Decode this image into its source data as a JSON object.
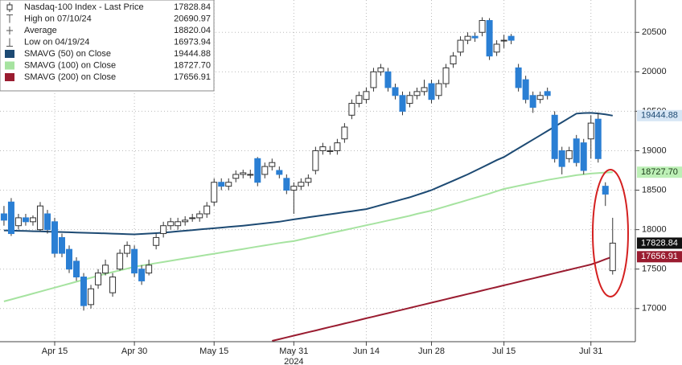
{
  "chart_data": {
    "type": "candlestick",
    "name": "Nasdaq-100 Index - Last Price",
    "last": 17828.84,
    "stats": [
      {
        "label": "High on 07/10/24",
        "value": 20690.97
      },
      {
        "label": "Average",
        "value": 18820.04
      },
      {
        "label": "Low on 04/19/24",
        "value": 16973.94
      }
    ],
    "categories": [
      null,
      null,
      null,
      null,
      null,
      null,
      null,
      "Apr 15",
      null,
      null,
      null,
      null,
      null,
      null,
      null,
      null,
      null,
      null,
      "Apr 30",
      null,
      null,
      null,
      null,
      null,
      null,
      null,
      null,
      null,
      null,
      "May 15",
      null,
      null,
      null,
      null,
      null,
      null,
      null,
      null,
      null,
      null,
      "May 31",
      null,
      null,
      null,
      null,
      null,
      null,
      null,
      null,
      null,
      "Jun 14",
      null,
      null,
      null,
      null,
      null,
      null,
      null,
      null,
      "Jun 28",
      null,
      null,
      null,
      null,
      null,
      null,
      null,
      null,
      null,
      "Jul 15",
      null,
      null,
      null,
      null,
      null,
      null,
      null,
      null,
      null,
      null,
      null,
      "Jul 31",
      null,
      null,
      null
    ],
    "xlabel": "2024",
    "open": [
      18200,
      18350,
      18050,
      18150,
      18100,
      18000,
      18200,
      18100,
      17900,
      17750,
      17600,
      17400,
      17050,
      17300,
      17450,
      17200,
      17500,
      17700,
      17750,
      17500,
      17450,
      17800,
      17950,
      18050,
      18050,
      18100,
      18150,
      18150,
      18200,
      18350,
      18600,
      18550,
      18650,
      18700,
      18700,
      18900,
      18700,
      18800,
      18750,
      18650,
      18500,
      18550,
      18600,
      18750,
      19000,
      19000,
      19000,
      19150,
      19450,
      19600,
      19650,
      19800,
      20000,
      20000,
      19800,
      19700,
      19600,
      19700,
      19750,
      19850,
      19700,
      19850,
      20100,
      20250,
      20400,
      20450,
      20500,
      20650,
      20250,
      20400,
      20450,
      20050,
      19900,
      19700,
      19650,
      19750,
      19450,
      19000,
      18900,
      19150,
      19100,
      19150,
      19400,
      18550,
      17480
    ],
    "high": [
      18300,
      18400,
      18200,
      18200,
      18180,
      18350,
      18250,
      18150,
      17950,
      17800,
      17650,
      17450,
      17300,
      17500,
      17620,
      17450,
      17750,
      17850,
      17800,
      17550,
      17620,
      17950,
      18100,
      18150,
      18150,
      18170,
      18200,
      18240,
      18350,
      18650,
      18650,
      18650,
      18750,
      18760,
      18760,
      18920,
      18850,
      18900,
      18800,
      18700,
      18600,
      18650,
      18700,
      19050,
      19100,
      19060,
      19150,
      19350,
      19650,
      19750,
      19800,
      20050,
      20100,
      20050,
      19850,
      19750,
      19750,
      19800,
      19900,
      19900,
      19900,
      20100,
      20250,
      20450,
      20500,
      20500,
      20690.97,
      20680,
      20400,
      20470,
      20480,
      20100,
      19950,
      19750,
      19750,
      19800,
      19500,
      19050,
      19050,
      19200,
      19150,
      19450,
      19480,
      18600,
      18150
    ],
    "low": [
      18050,
      17920,
      18000,
      18050,
      18050,
      17980,
      17950,
      17650,
      17650,
      17450,
      17350,
      16973.94,
      17000,
      17250,
      17420,
      17150,
      17480,
      17650,
      17400,
      17300,
      17420,
      17750,
      17900,
      18000,
      18000,
      18050,
      18100,
      18100,
      18150,
      18300,
      18500,
      18500,
      18600,
      18650,
      18650,
      18550,
      18650,
      18750,
      18650,
      18450,
      18200,
      18500,
      18550,
      18700,
      18950,
      18950,
      18950,
      19100,
      19400,
      19550,
      19600,
      19750,
      19950,
      19750,
      19650,
      19450,
      19550,
      19650,
      19700,
      19600,
      19650,
      19800,
      20050,
      20200,
      20350,
      20380,
      20450,
      20150,
      20200,
      20300,
      20350,
      19750,
      19600,
      19480,
      19600,
      19650,
      18850,
      18700,
      18850,
      18800,
      18700,
      18900,
      18850,
      18300,
      17430
    ],
    "close": [
      18120,
      17950,
      18150,
      18100,
      18150,
      18300,
      18000,
      17700,
      17700,
      17500,
      17400,
      17037,
      17250,
      17450,
      17550,
      17400,
      17700,
      17800,
      17450,
      17350,
      17550,
      17900,
      18050,
      18100,
      18100,
      18120,
      18150,
      18200,
      18300,
      18600,
      18550,
      18600,
      18700,
      18720,
      18700,
      18600,
      18800,
      18850,
      18700,
      18500,
      18550,
      18600,
      18650,
      19000,
      19050,
      19000,
      19100,
      19300,
      19600,
      19700,
      19750,
      20000,
      20050,
      19800,
      19700,
      19500,
      19700,
      19750,
      19800,
      19650,
      19850,
      20050,
      20200,
      20400,
      20450,
      20430,
      20650,
      20200,
      20350,
      20400,
      20400,
      19800,
      19650,
      19550,
      19700,
      19700,
      18900,
      18800,
      19000,
      18850,
      18750,
      19350,
      18900,
      18450,
      17828.84
    ],
    "up_color": "#ffffff",
    "down_color": "#2a7fd4",
    "series": [
      {
        "name": "SMAVG (50) on Close",
        "color": "#1d4a73",
        "last": 19444.88,
        "values": [
          17990,
          17988,
          17985,
          17983,
          17980,
          17978,
          17975,
          17972,
          17970,
          17967,
          17964,
          17961,
          17958,
          17955,
          17952,
          17949,
          17946,
          17943,
          17940,
          17945,
          17950,
          17955,
          17962,
          17970,
          17978,
          17986,
          17994,
          18002,
          18010,
          18018,
          18026,
          18034,
          18042,
          18050,
          18060,
          18070,
          18080,
          18090,
          18100,
          18115,
          18130,
          18143,
          18156,
          18169,
          18182,
          18195,
          18208,
          18221,
          18234,
          18247,
          18260,
          18285,
          18310,
          18335,
          18360,
          18385,
          18410,
          18440,
          18470,
          18500,
          18540,
          18580,
          18620,
          18660,
          18700,
          18745,
          18790,
          18835,
          18880,
          18920,
          18975,
          19030,
          19085,
          19140,
          19195,
          19250,
          19305,
          19360,
          19415,
          19470,
          19478,
          19480,
          19472,
          19460,
          19445
        ]
      },
      {
        "name": "SMAVG (100) on Close",
        "color": "#a6e3a0",
        "last": {
          "value": 18727.7,
          "label": "18727.70"
        },
        "values": [
          17090,
          17115,
          17140,
          17165,
          17190,
          17215,
          17240,
          17265,
          17290,
          17315,
          17340,
          17365,
          17390,
          17415,
          17440,
          17462,
          17484,
          17506,
          17530,
          17545,
          17560,
          17575,
          17590,
          17605,
          17620,
          17635,
          17650,
          17665,
          17680,
          17695,
          17710,
          17725,
          17740,
          17755,
          17770,
          17785,
          17800,
          17815,
          17830,
          17843,
          17855,
          17875,
          17895,
          17915,
          17935,
          17955,
          17975,
          17995,
          18015,
          18035,
          18055,
          18075,
          18095,
          18115,
          18135,
          18155,
          18175,
          18200,
          18220,
          18241,
          18268,
          18295,
          18322,
          18349,
          18376,
          18403,
          18430,
          18457,
          18487,
          18516,
          18535,
          18554,
          18573,
          18592,
          18611,
          18630,
          18645,
          18660,
          18675,
          18690,
          18700,
          18710,
          18718,
          18724,
          18728
        ]
      },
      {
        "name": "SMAVG (200) on Close",
        "color": "#9a1c30",
        "last": 17656.91,
        "values": [
          null,
          null,
          null,
          null,
          null,
          null,
          null,
          null,
          null,
          null,
          null,
          null,
          null,
          null,
          null,
          null,
          null,
          null,
          null,
          null,
          null,
          null,
          null,
          null,
          null,
          null,
          null,
          null,
          null,
          null,
          null,
          null,
          null,
          null,
          null,
          null,
          null,
          16590,
          16612,
          16634,
          16656,
          16678,
          16700,
          16722,
          16744,
          16766,
          16788,
          16810,
          16832,
          16854,
          16876,
          16898,
          16920,
          16942,
          16964,
          16986,
          17008,
          17030,
          17052,
          17074,
          17096,
          17118,
          17140,
          17162,
          17184,
          17206,
          17228,
          17250,
          17272,
          17294,
          17316,
          17338,
          17360,
          17382,
          17404,
          17426,
          17448,
          17470,
          17492,
          17514,
          17536,
          17558,
          17590,
          17625,
          17657
        ]
      }
    ],
    "ylim": [
      16580,
      20910
    ],
    "yticks": [
      17000,
      17500,
      18000,
      18500,
      19000,
      19500,
      20000,
      20500
    ],
    "grid": true
  }
}
